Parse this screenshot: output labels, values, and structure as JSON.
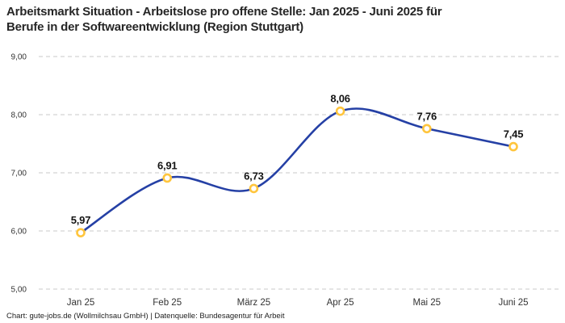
{
  "header": {
    "title_lines": [
      "Arbeitsmarkt Situation - Arbeitslose pro offene Stelle: Jan 2025 - Juni 2025 für",
      "Berufe in der Softwareentwicklung (Region Stuttgart)"
    ]
  },
  "footer": {
    "attribution": "Chart: gute-jobs.de (Wollmilchsau GmbH) | Datenquelle: Bundesagentur für Arbeit"
  },
  "chart_data": {
    "type": "line",
    "title": "Arbeitsmarkt Situation - Arbeitslose pro offene Stelle: Jan 2025 - Juni 2025 für Berufe in der Softwareentwicklung (Region Stuttgart)",
    "xlabel": "",
    "ylabel": "",
    "categories": [
      "Jan 25",
      "Feb 25",
      "März 25",
      "Apr 25",
      "Mai 25",
      "Juni 25"
    ],
    "values": [
      5.97,
      6.91,
      6.73,
      8.06,
      7.76,
      7.45
    ],
    "value_labels": [
      "5,97",
      "6,91",
      "6,73",
      "8,06",
      "7,76",
      "7,45"
    ],
    "ylim": [
      5,
      9
    ],
    "y_ticks": [
      5,
      6,
      7,
      8,
      9
    ],
    "y_tick_labels": [
      "5,00",
      "6,00",
      "7,00",
      "8,00",
      "9,00"
    ],
    "grid": "horizontal-dashed",
    "legend": "none",
    "line_style": "smooth-spline",
    "marker_style": "open-circle",
    "colors": {
      "line": "#2540A5",
      "marker_ring": "#FFC53D",
      "marker_fill": "#FFFFFF",
      "gridline": "#C9C9C9",
      "value_label": "#141414",
      "tick_label": "#333333"
    }
  }
}
